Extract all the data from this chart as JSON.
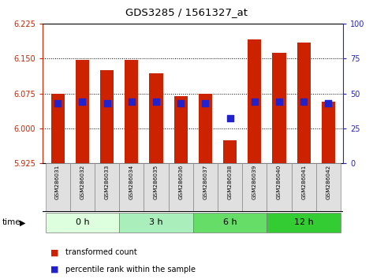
{
  "title": "GDS3285 / 1561327_at",
  "samples": [
    "GSM286031",
    "GSM286032",
    "GSM286033",
    "GSM286034",
    "GSM286035",
    "GSM286036",
    "GSM286037",
    "GSM286038",
    "GSM286039",
    "GSM286040",
    "GSM286041",
    "GSM286042"
  ],
  "group_labels": [
    "0 h",
    "3 h",
    "6 h",
    "12 h"
  ],
  "group_boundaries": [
    0,
    3,
    6,
    9,
    12
  ],
  "transformed_count": [
    6.075,
    6.148,
    6.125,
    6.147,
    6.118,
    6.07,
    6.075,
    5.975,
    6.192,
    6.163,
    6.185,
    6.058
  ],
  "percentile_rank": [
    43,
    44,
    43,
    44,
    44,
    43,
    43,
    32,
    44,
    44,
    44,
    43
  ],
  "ylim_left": [
    5.925,
    6.225
  ],
  "ylim_right": [
    0,
    100
  ],
  "yticks_left": [
    5.925,
    6.0,
    6.075,
    6.15,
    6.225
  ],
  "yticks_right": [
    0,
    25,
    50,
    75,
    100
  ],
  "bar_color": "#cc2200",
  "dot_color": "#2222cc",
  "bg_color": "#ffffff",
  "group_colors": [
    "#ddffdd",
    "#aaeebb",
    "#66dd66",
    "#33cc33"
  ],
  "left_tick_color": "#cc2200",
  "right_tick_color": "#2222cc",
  "bar_width": 0.55,
  "dot_size": 28
}
